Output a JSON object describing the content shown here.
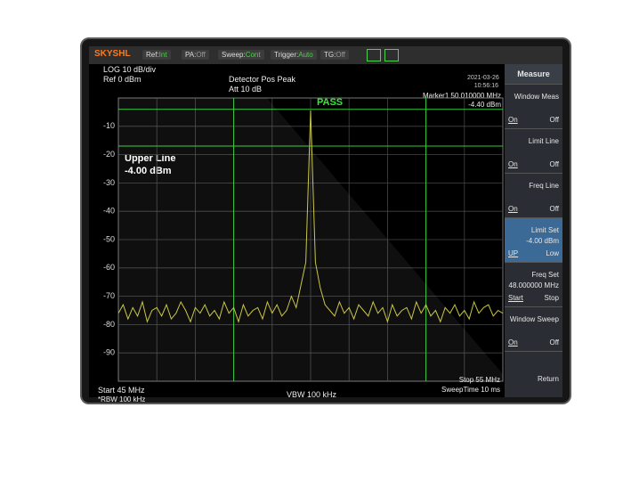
{
  "topbar": {
    "brand": "SKYSHL",
    "fields": [
      {
        "label": "Ref:",
        "value": "Int"
      },
      {
        "label": "PA:",
        "value": "Off"
      },
      {
        "label": "Sweep:",
        "value": "Cont"
      },
      {
        "label": "Trigger:",
        "value": "Auto"
      },
      {
        "label": "TG:",
        "value": "Off"
      }
    ],
    "date": "2021-03-26",
    "time": "10:56:16"
  },
  "info": {
    "scale": "LOG  10 dB/div",
    "ref": "Ref  0 dBm",
    "detector": "Detector Pos Peak",
    "att": "Att 10 dB",
    "marker": "Marker1 50.010000 MHz",
    "marker_level": "-4.40 dBm",
    "verdict": "PASS",
    "limit_name": "Upper Line",
    "limit_value": "-4.00 dBm"
  },
  "footer": {
    "start": "Start 45 MHz",
    "rbw": "*RBW 100 kHz",
    "vbw": "VBW  100 kHz",
    "stop": "Stop 55 MHz",
    "sweep_time": "SweepTime 10 ms"
  },
  "menu": {
    "title": "Measure",
    "items": [
      {
        "label": "Window Meas",
        "left": "On",
        "right": "Off"
      },
      {
        "label": "Limit Line",
        "left": "On",
        "right": "Off"
      },
      {
        "label": "Freq Line",
        "left": "On",
        "right": "Off"
      },
      {
        "label": "Limit Set",
        "value": "-4.00 dBm",
        "left": "UP",
        "right": "Low"
      },
      {
        "label": "Freq Set",
        "value": "48.000000 MHz",
        "left": "Start",
        "right": "Stop"
      },
      {
        "label": "Window Sweep",
        "left": "On",
        "right": "Off"
      },
      {
        "label": "Return"
      }
    ]
  },
  "chart_data": {
    "type": "line",
    "color": "#c8c43a",
    "x": [
      45,
      45.125,
      45.25,
      45.375,
      45.5,
      45.625,
      45.75,
      45.875,
      46,
      46.125,
      46.25,
      46.375,
      46.5,
      46.625,
      46.75,
      46.875,
      47,
      47.125,
      47.25,
      47.375,
      47.5,
      47.625,
      47.75,
      47.875,
      48,
      48.125,
      48.25,
      48.375,
      48.5,
      48.625,
      48.75,
      48.875,
      49,
      49.125,
      49.25,
      49.375,
      49.5,
      49.625,
      49.75,
      49.875,
      50,
      50.125,
      50.25,
      50.375,
      50.5,
      50.625,
      50.75,
      50.875,
      51,
      51.125,
      51.25,
      51.375,
      51.5,
      51.625,
      51.75,
      51.875,
      52,
      52.125,
      52.25,
      52.375,
      52.5,
      52.625,
      52.75,
      52.875,
      53,
      53.125,
      53.25,
      53.375,
      53.5,
      53.625,
      53.75,
      53.875,
      54,
      54.125,
      54.25,
      54.375,
      54.5,
      54.625,
      54.75,
      54.875,
      55
    ],
    "values": [
      -76,
      -73,
      -78,
      -74,
      -77,
      -72,
      -79,
      -75,
      -74,
      -77,
      -73,
      -78,
      -76,
      -72,
      -75,
      -79,
      -74,
      -76,
      -73,
      -77,
      -75,
      -78,
      -72,
      -76,
      -74,
      -79,
      -73,
      -77,
      -75,
      -74,
      -78,
      -72,
      -76,
      -73,
      -77,
      -75,
      -70,
      -74,
      -66,
      -58,
      -4.4,
      -58,
      -67,
      -73,
      -75,
      -77,
      -72,
      -76,
      -74,
      -78,
      -73,
      -75,
      -77,
      -72,
      -76,
      -74,
      -79,
      -73,
      -77,
      -75,
      -74,
      -78,
      -72,
      -76,
      -73,
      -77,
      -75,
      -79,
      -74,
      -76,
      -73,
      -77,
      -75,
      -78,
      -72,
      -76,
      -74,
      -73,
      -77,
      -75,
      -76
    ],
    "xlim": [
      45,
      55
    ],
    "ylim": [
      -100,
      0
    ],
    "yticks": [
      -10,
      -20,
      -30,
      -40,
      -50,
      -60,
      -70,
      -80,
      -90
    ],
    "limit_lines": [
      -4,
      -17
    ],
    "freq_lines": [
      48,
      53
    ],
    "limit_color": "#35c83a",
    "grid": true
  }
}
